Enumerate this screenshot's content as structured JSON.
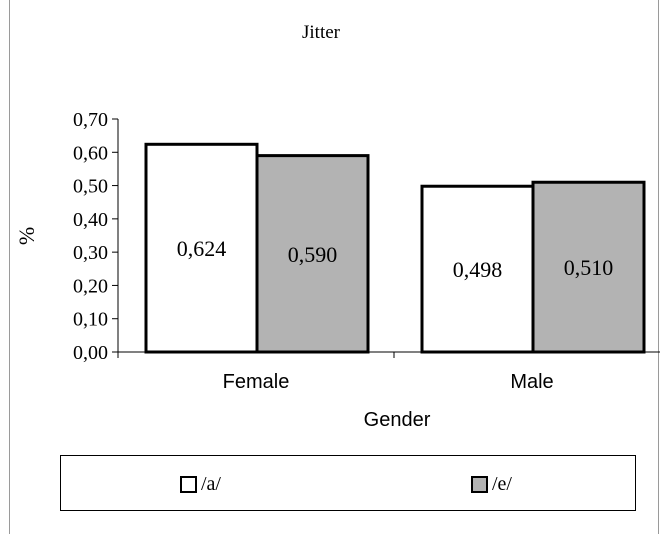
{
  "chart_data": {
    "type": "bar",
    "title": "Jitter",
    "xlabel": "Gender",
    "ylabel": "%",
    "categories": [
      "Female",
      "Male"
    ],
    "series": [
      {
        "name": "/a/",
        "values": [
          0.624,
          0.498
        ],
        "labels": [
          "0,624",
          "0,498"
        ],
        "color": "#ffffff"
      },
      {
        "name": "/e/",
        "values": [
          0.59,
          0.51
        ],
        "labels": [
          "0,590",
          "0,510"
        ],
        "color": "#b3b3b3"
      }
    ],
    "ylim": [
      0,
      0.7
    ],
    "yticks": [
      "0,00",
      "0,10",
      "0,20",
      "0,30",
      "0,40",
      "0,50",
      "0,60",
      "0,70"
    ],
    "grid": false,
    "legend_position": "bottom"
  }
}
